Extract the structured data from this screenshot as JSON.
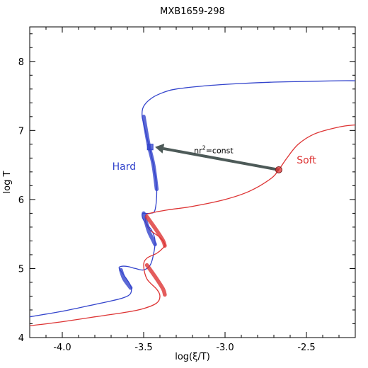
{
  "chart_data": {
    "type": "line",
    "title": "MXB1659-298",
    "xlabel": "log(ξ/T)",
    "ylabel": "log T",
    "xlim": [
      -4.2,
      -2.2
    ],
    "ylim": [
      4.0,
      8.5
    ],
    "x_ticks": [
      "-4.0",
      "-3.5",
      "-3.0",
      "-2.5"
    ],
    "x_tick_values": [
      -4.0,
      -3.5,
      -3.0,
      -2.5
    ],
    "y_ticks": [
      "4",
      "5",
      "6",
      "7",
      "8"
    ],
    "y_tick_values": [
      4,
      5,
      6,
      7,
      8
    ],
    "series": [
      {
        "name": "Hard",
        "color": "#3344cc",
        "x": [
          -4.2,
          -4.1,
          -4.0,
          -3.9,
          -3.8,
          -3.7,
          -3.62,
          -3.58,
          -3.58,
          -3.62,
          -3.65,
          -3.64,
          -3.6,
          -3.55,
          -3.5,
          -3.46,
          -3.44,
          -3.43,
          -3.45,
          -3.5,
          -3.51,
          -3.5,
          -3.46,
          -3.43,
          -3.42,
          -3.44,
          -3.47,
          -3.5,
          -3.51,
          -3.5,
          -3.45,
          -3.38,
          -3.3,
          -3.1,
          -2.9,
          -2.7,
          -2.5,
          -2.3,
          -2.2
        ],
        "y": [
          4.3,
          4.34,
          4.38,
          4.43,
          4.48,
          4.53,
          4.58,
          4.64,
          4.75,
          4.9,
          5.0,
          5.03,
          5.03,
          5.0,
          4.98,
          5.05,
          5.2,
          5.4,
          5.55,
          5.7,
          5.78,
          5.8,
          5.8,
          5.85,
          6.15,
          6.5,
          6.8,
          7.1,
          7.22,
          7.35,
          7.47,
          7.55,
          7.6,
          7.65,
          7.68,
          7.7,
          7.71,
          7.72,
          7.72
        ]
      },
      {
        "name": "Soft",
        "color": "#dd3333",
        "x": [
          -4.2,
          -4.0,
          -3.8,
          -3.6,
          -3.5,
          -3.42,
          -3.4,
          -3.42,
          -3.48,
          -3.5,
          -3.48,
          -3.42,
          -3.38,
          -3.37,
          -3.4,
          -3.47,
          -3.49,
          -3.46,
          -3.35,
          -3.2,
          -3.0,
          -2.85,
          -2.72,
          -2.67,
          -2.62,
          -2.55,
          -2.45,
          -2.3,
          -2.2
        ],
        "y": [
          4.17,
          4.23,
          4.3,
          4.37,
          4.42,
          4.5,
          4.6,
          4.7,
          4.85,
          5.05,
          5.15,
          5.22,
          5.3,
          5.35,
          5.45,
          5.58,
          5.75,
          5.8,
          5.85,
          5.9,
          6.0,
          6.12,
          6.3,
          6.43,
          6.6,
          6.8,
          6.95,
          7.05,
          7.08
        ]
      }
    ],
    "thick_segments": [
      {
        "series": "Hard",
        "x": [
          -3.58,
          -3.62,
          -3.64
        ],
        "y": [
          4.72,
          4.85,
          4.98
        ]
      },
      {
        "series": "Hard",
        "x": [
          -3.5,
          -3.47,
          -3.44,
          -3.43
        ],
        "y": [
          5.8,
          5.55,
          5.4,
          5.35
        ]
      },
      {
        "series": "Hard",
        "x": [
          -3.42,
          -3.44,
          -3.47,
          -3.5
        ],
        "y": [
          6.15,
          6.5,
          6.8,
          7.2
        ]
      },
      {
        "series": "Soft",
        "x": [
          -3.48,
          -3.42,
          -3.38,
          -3.37
        ],
        "y": [
          5.75,
          5.55,
          5.4,
          5.33
        ]
      },
      {
        "series": "Soft",
        "x": [
          -3.48,
          -3.42,
          -3.38,
          -3.37
        ],
        "y": [
          5.05,
          4.85,
          4.7,
          4.62
        ]
      }
    ],
    "markers": [
      {
        "series": "Hard",
        "shape": "square",
        "x": -3.46,
        "y": 6.76
      },
      {
        "series": "Soft",
        "shape": "circle",
        "x": -2.67,
        "y": 6.43
      }
    ],
    "arrow": {
      "from": [
        -2.67,
        6.43
      ],
      "to": [
        -3.43,
        6.76
      ],
      "color": "#4d5a58"
    },
    "annotations": [
      {
        "text_base": "nr",
        "text_sup": "2",
        "text_rest": "=const",
        "x": -3.07,
        "y": 6.67
      },
      {
        "text": "Hard",
        "x": -3.62,
        "y": 6.43,
        "color": "#3344cc"
      },
      {
        "text": "Soft",
        "x": -2.5,
        "y": 6.52,
        "color": "#dd3333"
      }
    ]
  }
}
